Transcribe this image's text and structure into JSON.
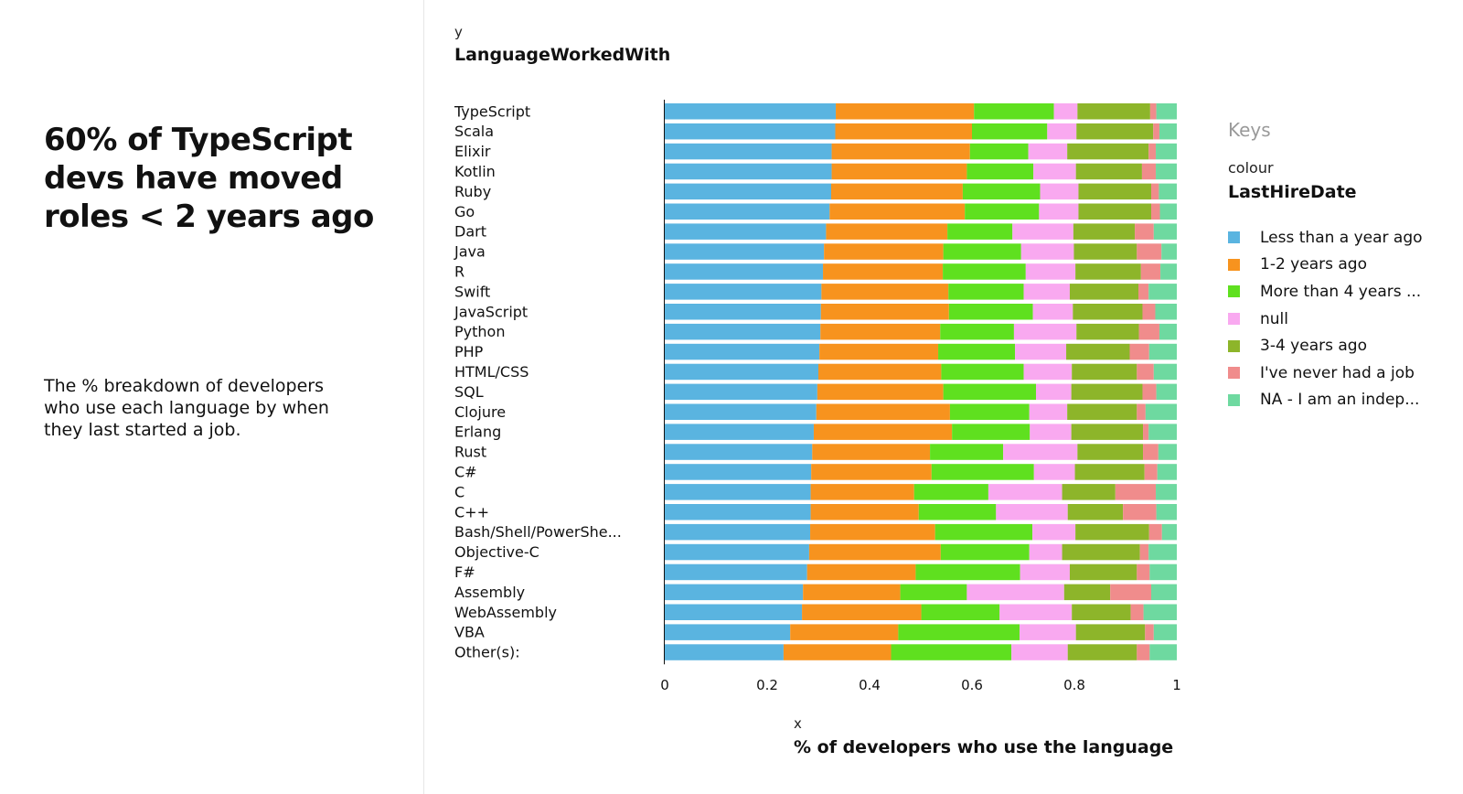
{
  "story": {
    "headline": "60% of TypeScript devs have moved roles < 2 years ago",
    "description": "The % breakdown of developers who use each language by when they last started a job."
  },
  "chart_data": {
    "type": "bar",
    "orientation": "horizontal",
    "stacked": true,
    "y_tag": "y",
    "ylabel": "LanguageWorkedWith",
    "x_tag": "x",
    "xlabel": "% of developers who use the language",
    "xlim": [
      0,
      1
    ],
    "x_ticks": [
      "0",
      "0.2",
      "0.4",
      "0.6",
      "0.8",
      "1"
    ],
    "categories": [
      "TypeScript",
      "Scala",
      "Elixir",
      "Kotlin",
      "Ruby",
      "Go",
      "Dart",
      "Java",
      "R",
      "Swift",
      "JavaScript",
      "Python",
      "PHP",
      "HTML/CSS",
      "SQL",
      "Clojure",
      "Erlang",
      "Rust",
      "C#",
      "C",
      "C++",
      "Bash/Shell/PowerShe...",
      "Objective-C",
      "F#",
      "Assembly",
      "WebAssembly",
      "VBA",
      "Other(s):"
    ],
    "series": [
      {
        "name": "Less than a year ago",
        "color": "#5ab4e0",
        "values": [
          0.334,
          0.333,
          0.326,
          0.326,
          0.325,
          0.322,
          0.315,
          0.311,
          0.309,
          0.306,
          0.305,
          0.304,
          0.302,
          0.3,
          0.298,
          0.296,
          0.291,
          0.288,
          0.286,
          0.285,
          0.285,
          0.284,
          0.282,
          0.278,
          0.27,
          0.268,
          0.245,
          0.232
        ]
      },
      {
        "name": "1-2 years ago",
        "color": "#f7931e",
        "values": [
          0.27,
          0.267,
          0.27,
          0.264,
          0.257,
          0.264,
          0.237,
          0.233,
          0.234,
          0.248,
          0.25,
          0.234,
          0.232,
          0.24,
          0.246,
          0.261,
          0.27,
          0.23,
          0.235,
          0.202,
          0.211,
          0.244,
          0.257,
          0.212,
          0.19,
          0.233,
          0.211,
          0.21
        ]
      },
      {
        "name": "More than 4 years ...",
        "color": "#5fe01f",
        "values": [
          0.156,
          0.147,
          0.114,
          0.13,
          0.151,
          0.145,
          0.127,
          0.152,
          0.162,
          0.147,
          0.164,
          0.144,
          0.15,
          0.161,
          0.181,
          0.155,
          0.152,
          0.143,
          0.2,
          0.145,
          0.151,
          0.19,
          0.173,
          0.204,
          0.13,
          0.153,
          0.237,
          0.235
        ]
      },
      {
        "name": "null",
        "color": "#f9a9f0",
        "values": [
          0.046,
          0.057,
          0.076,
          0.083,
          0.075,
          0.077,
          0.119,
          0.103,
          0.097,
          0.09,
          0.078,
          0.122,
          0.1,
          0.094,
          0.069,
          0.074,
          0.081,
          0.145,
          0.08,
          0.144,
          0.14,
          0.084,
          0.064,
          0.097,
          0.19,
          0.141,
          0.11,
          0.11
        ]
      },
      {
        "name": "3-4 years ago",
        "color": "#8db52a",
        "values": [
          0.142,
          0.15,
          0.159,
          0.129,
          0.142,
          0.142,
          0.12,
          0.123,
          0.128,
          0.134,
          0.136,
          0.122,
          0.124,
          0.127,
          0.139,
          0.136,
          0.14,
          0.128,
          0.136,
          0.104,
          0.108,
          0.144,
          0.152,
          0.131,
          0.09,
          0.115,
          0.135,
          0.135
        ]
      },
      {
        "name": "I've never had a job",
        "color": "#f08c8c",
        "values": [
          0.012,
          0.012,
          0.014,
          0.027,
          0.015,
          0.017,
          0.037,
          0.048,
          0.038,
          0.02,
          0.025,
          0.04,
          0.038,
          0.033,
          0.027,
          0.017,
          0.011,
          0.03,
          0.025,
          0.079,
          0.065,
          0.025,
          0.017,
          0.025,
          0.08,
          0.025,
          0.017,
          0.025
        ]
      },
      {
        "name": "NA - I am an indep...",
        "color": "#6ed9a0",
        "values": [
          0.04,
          0.034,
          0.041,
          0.041,
          0.035,
          0.033,
          0.045,
          0.03,
          0.032,
          0.055,
          0.042,
          0.034,
          0.054,
          0.045,
          0.04,
          0.061,
          0.055,
          0.036,
          0.038,
          0.041,
          0.04,
          0.029,
          0.055,
          0.053,
          0.05,
          0.065,
          0.045,
          0.053
        ]
      }
    ],
    "legend": {
      "heading": "Keys",
      "sub": "colour",
      "field": "LastHireDate",
      "placement": "right"
    },
    "grid": false
  }
}
